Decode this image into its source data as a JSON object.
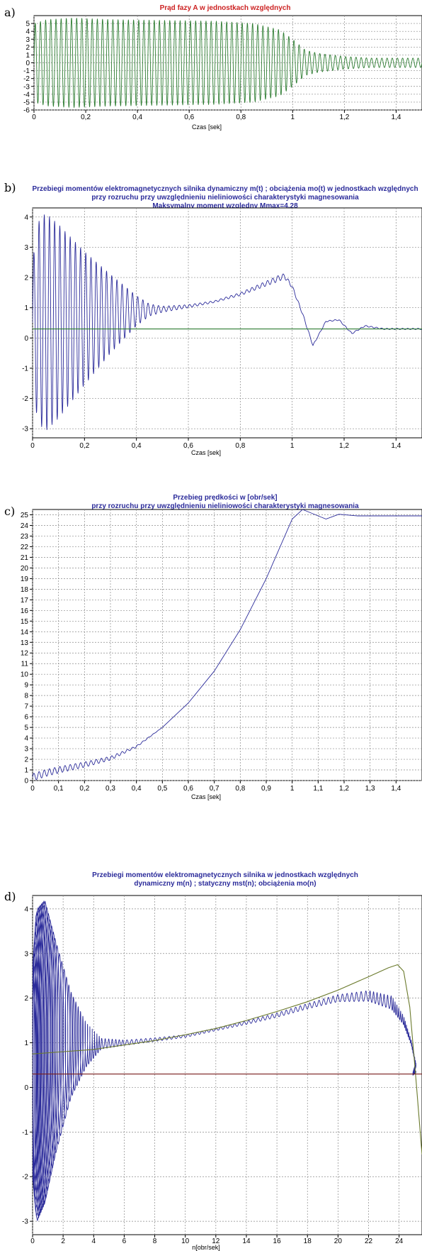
{
  "chart_data": [
    {
      "type": "line",
      "panel_label": "a)",
      "title_lines": [
        "Prąd fazy A w jednostkach względnych"
      ],
      "title_color": "#cc2222",
      "xlabel": "Czas [sek]",
      "ylabel": "",
      "xlim": [
        0,
        1.5
      ],
      "ylim": [
        -6,
        6
      ],
      "x_ticks": [
        0,
        0.2,
        0.4,
        0.6,
        0.8,
        1,
        1.2,
        1.4
      ],
      "x_tick_labels": [
        "0",
        "0,2",
        "0,4",
        "0,6",
        "0,8",
        "1",
        "1,2",
        "1,4"
      ],
      "y_ticks": [
        -6,
        -5,
        -4,
        -3,
        -2,
        -1,
        0,
        1,
        2,
        3,
        4,
        5
      ],
      "y_tick_labels": [
        "-6",
        "-5",
        "-4",
        "-3",
        "-2",
        "-1",
        "0",
        "1",
        "2",
        "3",
        "4",
        "5"
      ],
      "grid": true,
      "series": [
        {
          "color": "#2e7d32",
          "kind": "oscillation",
          "frequency_hz": 50,
          "envelope_x": [
            0,
            0.05,
            0.15,
            0.3,
            0.5,
            0.7,
            0.85,
            0.95,
            1.0,
            1.05,
            1.1,
            1.2,
            1.3,
            1.5
          ],
          "envelope_y": [
            5.0,
            5.5,
            5.7,
            5.5,
            5.4,
            5.3,
            5.0,
            4.2,
            3.0,
            1.6,
            1.2,
            0.8,
            0.6,
            0.6
          ],
          "offset": 0
        }
      ]
    },
    {
      "type": "line",
      "panel_label": "b)",
      "title_lines": [
        "Przebiegi momentów elektromagnetycznych silnika dynamiczny m(t) ; obciążenia mo(t) w jednostkach względnych",
        "przy rozruchu przy uwzględnieniu nieliniowości charakterystyki magnesowania",
        "Maksymalny moment względny Mmax=4,28"
      ],
      "title_color": "#2b2b9a",
      "xlabel": "Czas [sek]",
      "ylabel": "",
      "xlim": [
        0,
        1.5
      ],
      "ylim": [
        -3.3,
        4.3
      ],
      "x_ticks": [
        0,
        0.2,
        0.4,
        0.6,
        0.8,
        1,
        1.2,
        1.4
      ],
      "x_tick_labels": [
        "0",
        "0,2",
        "0,4",
        "0,6",
        "0,8",
        "1",
        "1,2",
        "1,4"
      ],
      "y_ticks": [
        -3,
        -2,
        -1,
        0,
        1,
        2,
        3,
        4
      ],
      "y_tick_labels": [
        "-3",
        "-2",
        "-1",
        "0",
        "1",
        "2",
        "3",
        "4"
      ],
      "grid": true,
      "series": [
        {
          "color": "#2b2b9a",
          "kind": "oscillation",
          "frequency_hz": 50,
          "envelope_x": [
            0,
            0.02,
            0.05,
            0.1,
            0.2,
            0.3,
            0.4,
            0.45,
            0.5,
            0.6,
            0.7,
            0.8,
            0.9,
            0.95,
            1.0,
            1.1,
            1.2,
            1.5
          ],
          "envelope_y": [
            2.0,
            3.3,
            3.6,
            3.2,
            2.2,
            1.3,
            0.5,
            0.2,
            0.1,
            0.05,
            0.03,
            0.05,
            0.08,
            0.1,
            0.05,
            0.02,
            0.02,
            0.02
          ],
          "mean_x": [
            0,
            0.1,
            0.2,
            0.3,
            0.4,
            0.5,
            0.6,
            0.7,
            0.8,
            0.9,
            0.97,
            1.0,
            1.04,
            1.08,
            1.13,
            1.18,
            1.23,
            1.28,
            1.35,
            1.5
          ],
          "mean_y": [
            0.5,
            0.55,
            0.65,
            0.8,
            0.9,
            0.95,
            1.05,
            1.2,
            1.45,
            1.8,
            2.05,
            1.7,
            0.8,
            -0.25,
            0.55,
            0.6,
            0.15,
            0.4,
            0.3,
            0.3
          ]
        },
        {
          "color": "#2e7d32",
          "kind": "polyline",
          "x": [
            0,
            1.5
          ],
          "y": [
            0.3,
            0.3
          ]
        }
      ]
    },
    {
      "type": "line",
      "panel_label": "c)",
      "title_lines": [
        "Przebieg prędkości w [obr/sek]",
        "przy rozruchu przy uwzględnieniu nieliniowości charakterystyki magnesowania"
      ],
      "title_color": "#2b2b9a",
      "xlabel": "Czas [sek]",
      "ylabel": "",
      "xlim": [
        0,
        1.5
      ],
      "ylim": [
        0,
        25.5
      ],
      "x_ticks": [
        0,
        0.1,
        0.2,
        0.3,
        0.4,
        0.5,
        0.6,
        0.7,
        0.8,
        0.9,
        1,
        1.1,
        1.2,
        1.3,
        1.4
      ],
      "x_tick_labels": [
        "0",
        "0,1",
        "0,2",
        "0,3",
        "0,4",
        "0,5",
        "0,6",
        "0,7",
        "0,8",
        "0,9",
        "1",
        "1,1",
        "1,2",
        "1,3",
        "1,4"
      ],
      "y_ticks": [
        0,
        1,
        2,
        3,
        4,
        5,
        6,
        7,
        8,
        9,
        10,
        11,
        12,
        13,
        14,
        15,
        16,
        17,
        18,
        19,
        20,
        21,
        22,
        23,
        24,
        25
      ],
      "y_tick_labels": [
        "0",
        "1",
        "2",
        "3",
        "4",
        "5",
        "6",
        "7",
        "8",
        "9",
        "10",
        "11",
        "12",
        "13",
        "14",
        "15",
        "16",
        "17",
        "18",
        "19",
        "20",
        "21",
        "22",
        "23",
        "24",
        "25"
      ],
      "grid": true,
      "series": [
        {
          "color": "#2b2b9a",
          "kind": "oscillation",
          "frequency_hz": 50,
          "envelope_x": [
            0,
            0.1,
            0.2,
            0.3,
            0.4,
            0.5,
            1.5
          ],
          "envelope_y": [
            0.35,
            0.3,
            0.25,
            0.18,
            0.08,
            0.0,
            0.0
          ],
          "mean_x": [
            0,
            0.05,
            0.1,
            0.2,
            0.3,
            0.4,
            0.5,
            0.6,
            0.7,
            0.8,
            0.9,
            0.95,
            1.0,
            1.04,
            1.08,
            1.13,
            1.18,
            1.25,
            1.35,
            1.5
          ],
          "mean_y": [
            0.3,
            0.7,
            1.0,
            1.5,
            2.1,
            3.2,
            5.0,
            7.3,
            10.3,
            14.2,
            19.0,
            21.8,
            24.6,
            25.5,
            25.1,
            24.6,
            25.05,
            24.9,
            24.9,
            24.9
          ]
        }
      ]
    },
    {
      "type": "line",
      "panel_label": "d)",
      "title_lines": [
        "Przebiegi momentów elektromagnetycznych silnika w jednostkach względnych",
        "dynamiczny m(n) ; statyczny mst(n); obciążenia mo(n)"
      ],
      "title_color": "#2b2b9a",
      "xlabel": "n[obr/sek]",
      "ylabel": "",
      "xlim": [
        0,
        25.5
      ],
      "ylim": [
        -3.3,
        4.3
      ],
      "x_ticks": [
        0,
        2,
        4,
        6,
        8,
        10,
        12,
        14,
        16,
        18,
        20,
        22,
        24
      ],
      "x_tick_labels": [
        "0",
        "2",
        "4",
        "6",
        "8",
        "10",
        "12",
        "14",
        "16",
        "18",
        "20",
        "22",
        "24"
      ],
      "y_ticks": [
        -3,
        -2,
        -1,
        0,
        1,
        2,
        3,
        4
      ],
      "y_tick_labels": [
        "-3",
        "-2",
        "-1",
        "0",
        "1",
        "2",
        "3",
        "4"
      ],
      "grid": true,
      "series": [
        {
          "color": "#2b2b9a",
          "kind": "parametric_oscillation",
          "cycles": 150,
          "path_x": [
            0,
            0.3,
            0.8,
            1.5,
            2.5,
            3.5,
            4.5,
            6,
            8,
            10,
            12,
            14,
            16,
            18,
            20,
            22,
            23.5,
            24.3,
            24.8,
            25.1,
            25.0,
            24.9,
            25.1,
            25.0
          ],
          "path_y": [
            0.3,
            0.5,
            0.8,
            0.9,
            0.95,
            0.95,
            0.98,
            1.0,
            1.07,
            1.15,
            1.3,
            1.45,
            1.62,
            1.82,
            2.0,
            2.05,
            1.9,
            1.5,
            1.0,
            0.5,
            0.4,
            0.3,
            0.35,
            0.3
          ],
          "amp_path": [
            2.2,
            3.5,
            3.4,
            2.4,
            1.2,
            0.5,
            0.12,
            0.06,
            0.04,
            0.03,
            0.03,
            0.04,
            0.05,
            0.06,
            0.08,
            0.12,
            0.15,
            0.1,
            0.05,
            0.05,
            0.05,
            0.03,
            0.02,
            0.0
          ]
        },
        {
          "color": "#6b7a2c",
          "kind": "polyline",
          "x": [
            0,
            2,
            4,
            6,
            8,
            10,
            12,
            14,
            16,
            18,
            20,
            22,
            23.3,
            23.9,
            24.3,
            24.7,
            25.1,
            25.5
          ],
          "y": [
            0.75,
            0.8,
            0.85,
            0.95,
            1.05,
            1.18,
            1.32,
            1.5,
            1.7,
            1.92,
            2.18,
            2.48,
            2.68,
            2.75,
            2.6,
            1.8,
            0.2,
            -1.5
          ]
        },
        {
          "color": "#7a1f1f",
          "kind": "polyline",
          "x": [
            0,
            25.5
          ],
          "y": [
            0.3,
            0.3
          ]
        }
      ]
    }
  ]
}
